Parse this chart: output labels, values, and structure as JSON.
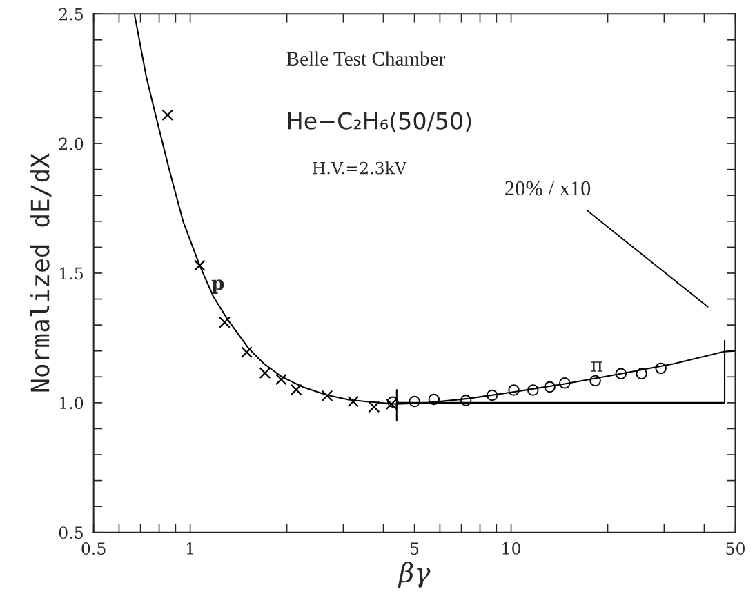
{
  "chart_data": {
    "type": "scatter",
    "xlabel": "βγ",
    "ylabel": "Normalized dE/dX",
    "log": "x",
    "xlim": [
      0.5,
      50
    ],
    "ylim": [
      0.5,
      2.5
    ],
    "xticks": [
      0.5,
      {
        "value": 0.6,
        "label": null
      },
      {
        "value": 0.7,
        "label": null
      },
      {
        "value": 0.8,
        "label": null
      },
      {
        "value": 0.9,
        "label": null
      },
      1,
      {
        "value": 2,
        "label": null
      },
      {
        "value": 3,
        "label": null
      },
      {
        "value": 4,
        "label": null
      },
      5,
      {
        "value": 6,
        "label": null
      },
      {
        "value": 7,
        "label": null
      },
      {
        "value": 8,
        "label": null
      },
      {
        "value": 9,
        "label": null
      },
      10,
      {
        "value": 20,
        "label": null
      },
      {
        "value": 30,
        "label": null
      },
      {
        "value": 40,
        "label": null
      },
      50
    ],
    "yticks": [
      {
        "value": 0.5,
        "label": "0.5"
      },
      {
        "value": 0.6,
        "label": null
      },
      {
        "value": 0.7,
        "label": null
      },
      {
        "value": 0.8,
        "label": null
      },
      {
        "value": 0.9,
        "label": null
      },
      {
        "value": 1.0,
        "label": "1.0"
      },
      {
        "value": 1.1,
        "label": null
      },
      {
        "value": 1.2,
        "label": null
      },
      {
        "value": 1.3,
        "label": null
      },
      {
        "value": 1.4,
        "label": null
      },
      {
        "value": 1.5,
        "label": "1.5"
      },
      {
        "value": 1.6,
        "label": null
      },
      {
        "value": 1.7,
        "label": null
      },
      {
        "value": 1.8,
        "label": null
      },
      {
        "value": 1.9,
        "label": null
      },
      {
        "value": 2.0,
        "label": "2.0"
      },
      {
        "value": 2.1,
        "label": null
      },
      {
        "value": 2.2,
        "label": null
      },
      {
        "value": 2.3,
        "label": null
      },
      {
        "value": 2.4,
        "label": null
      },
      {
        "value": 2.5,
        "label": "2.5"
      }
    ],
    "grid": false,
    "series": [
      {
        "name": "p",
        "marker": "cross",
        "color": "#000000",
        "x": [
          0.85,
          1.07,
          1.28,
          1.5,
          1.71,
          1.92,
          2.14,
          2.67,
          3.22,
          3.74,
          4.24
        ],
        "values": [
          2.11,
          1.53,
          1.31,
          1.195,
          1.115,
          1.09,
          1.05,
          1.027,
          1.005,
          0.984,
          0.995
        ]
      },
      {
        "name": "π",
        "marker": "circle",
        "color": "#000000",
        "x": [
          4.28,
          5.0,
          5.75,
          7.23,
          8.73,
          10.2,
          11.7,
          13.2,
          14.7,
          18.3,
          22.0,
          25.5,
          29.3
        ],
        "values": [
          1.003,
          1.005,
          1.013,
          1.009,
          1.029,
          1.049,
          1.049,
          1.061,
          1.076,
          1.085,
          1.112,
          1.112,
          1.133
        ]
      },
      {
        "type": "line",
        "line_style": "solid",
        "color": "#000000",
        "x": [
          0.67,
          0.73,
          0.78,
          0.86,
          0.95,
          1.07,
          1.18,
          1.31,
          1.52,
          1.7,
          1.93,
          2.25,
          2.66,
          3.1,
          3.51,
          4.4,
          5.5,
          7.33,
          10.0,
          14.7,
          22.0,
          32.0,
          46.0,
          50.0
        ],
        "values": [
          2.5,
          2.256,
          2.11,
          1.9,
          1.7,
          1.53,
          1.41,
          1.32,
          1.21,
          1.15,
          1.1,
          1.06,
          1.03,
          1.012,
          1.005,
          0.995,
          1.0,
          1.016,
          1.04,
          1.073,
          1.112,
          1.15,
          1.197,
          1.2
        ]
      },
      {
        "type": "line",
        "line_style": "solid",
        "color": "#000000",
        "x": [
          4.4,
          46.3
        ],
        "values": [
          1.0,
          1.0
        ]
      },
      {
        "type": "line",
        "line_style": "solid",
        "color": "#000000",
        "x": [
          4.4,
          4.4
        ],
        "values": [
          0.93,
          1.05
        ]
      },
      {
        "type": "line",
        "line_style": "solid",
        "color": "#000000",
        "x": [
          46.3,
          46.3
        ],
        "values": [
          1.0,
          1.24
        ]
      }
    ],
    "annotations": [
      "Belle Test Chamber",
      "He−C₂H₆(50/50)",
      "H.V.=2.3kV",
      "20% / x10"
    ]
  }
}
